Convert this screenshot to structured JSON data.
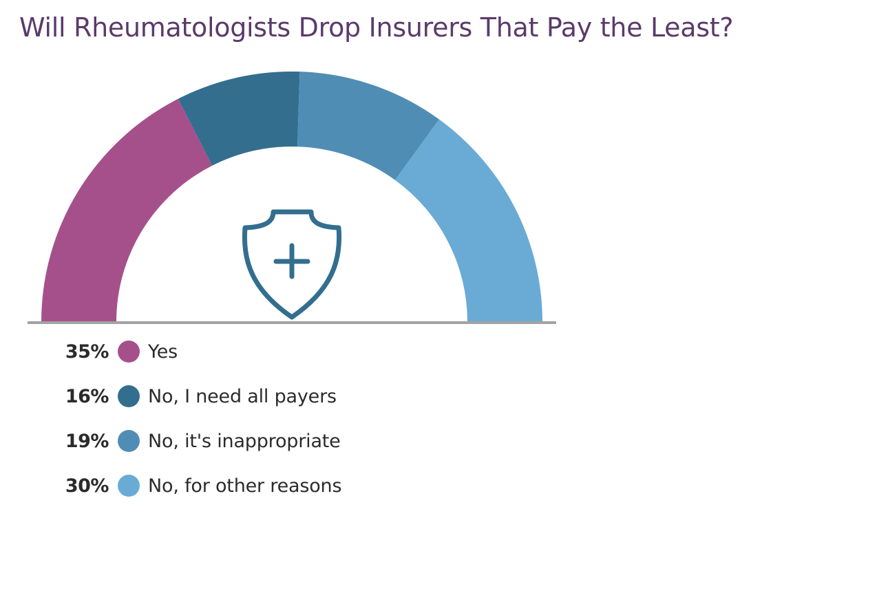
{
  "chart_data": {
    "type": "pie",
    "layout": "semi-donut",
    "title": "Will Rheumatologists Drop Insurers That Pay the Least?",
    "slices": [
      {
        "label": "Yes",
        "value": 35,
        "value_label": "35%",
        "color": "#a6508b"
      },
      {
        "label": "No, I need all payers",
        "value": 16,
        "value_label": "16%",
        "color": "#336e8e"
      },
      {
        "label": "No, it's inappropriate",
        "value": 19,
        "value_label": "19%",
        "color": "#4f8db5"
      },
      {
        "label": "No, for other reasons",
        "value": 30,
        "value_label": "30%",
        "color": "#69abd5"
      }
    ],
    "center_icon": "shield-plus-icon",
    "icon_color": "#336e8e",
    "baseline_color": "#a3a3a3",
    "legend_position": "bottom-left"
  }
}
